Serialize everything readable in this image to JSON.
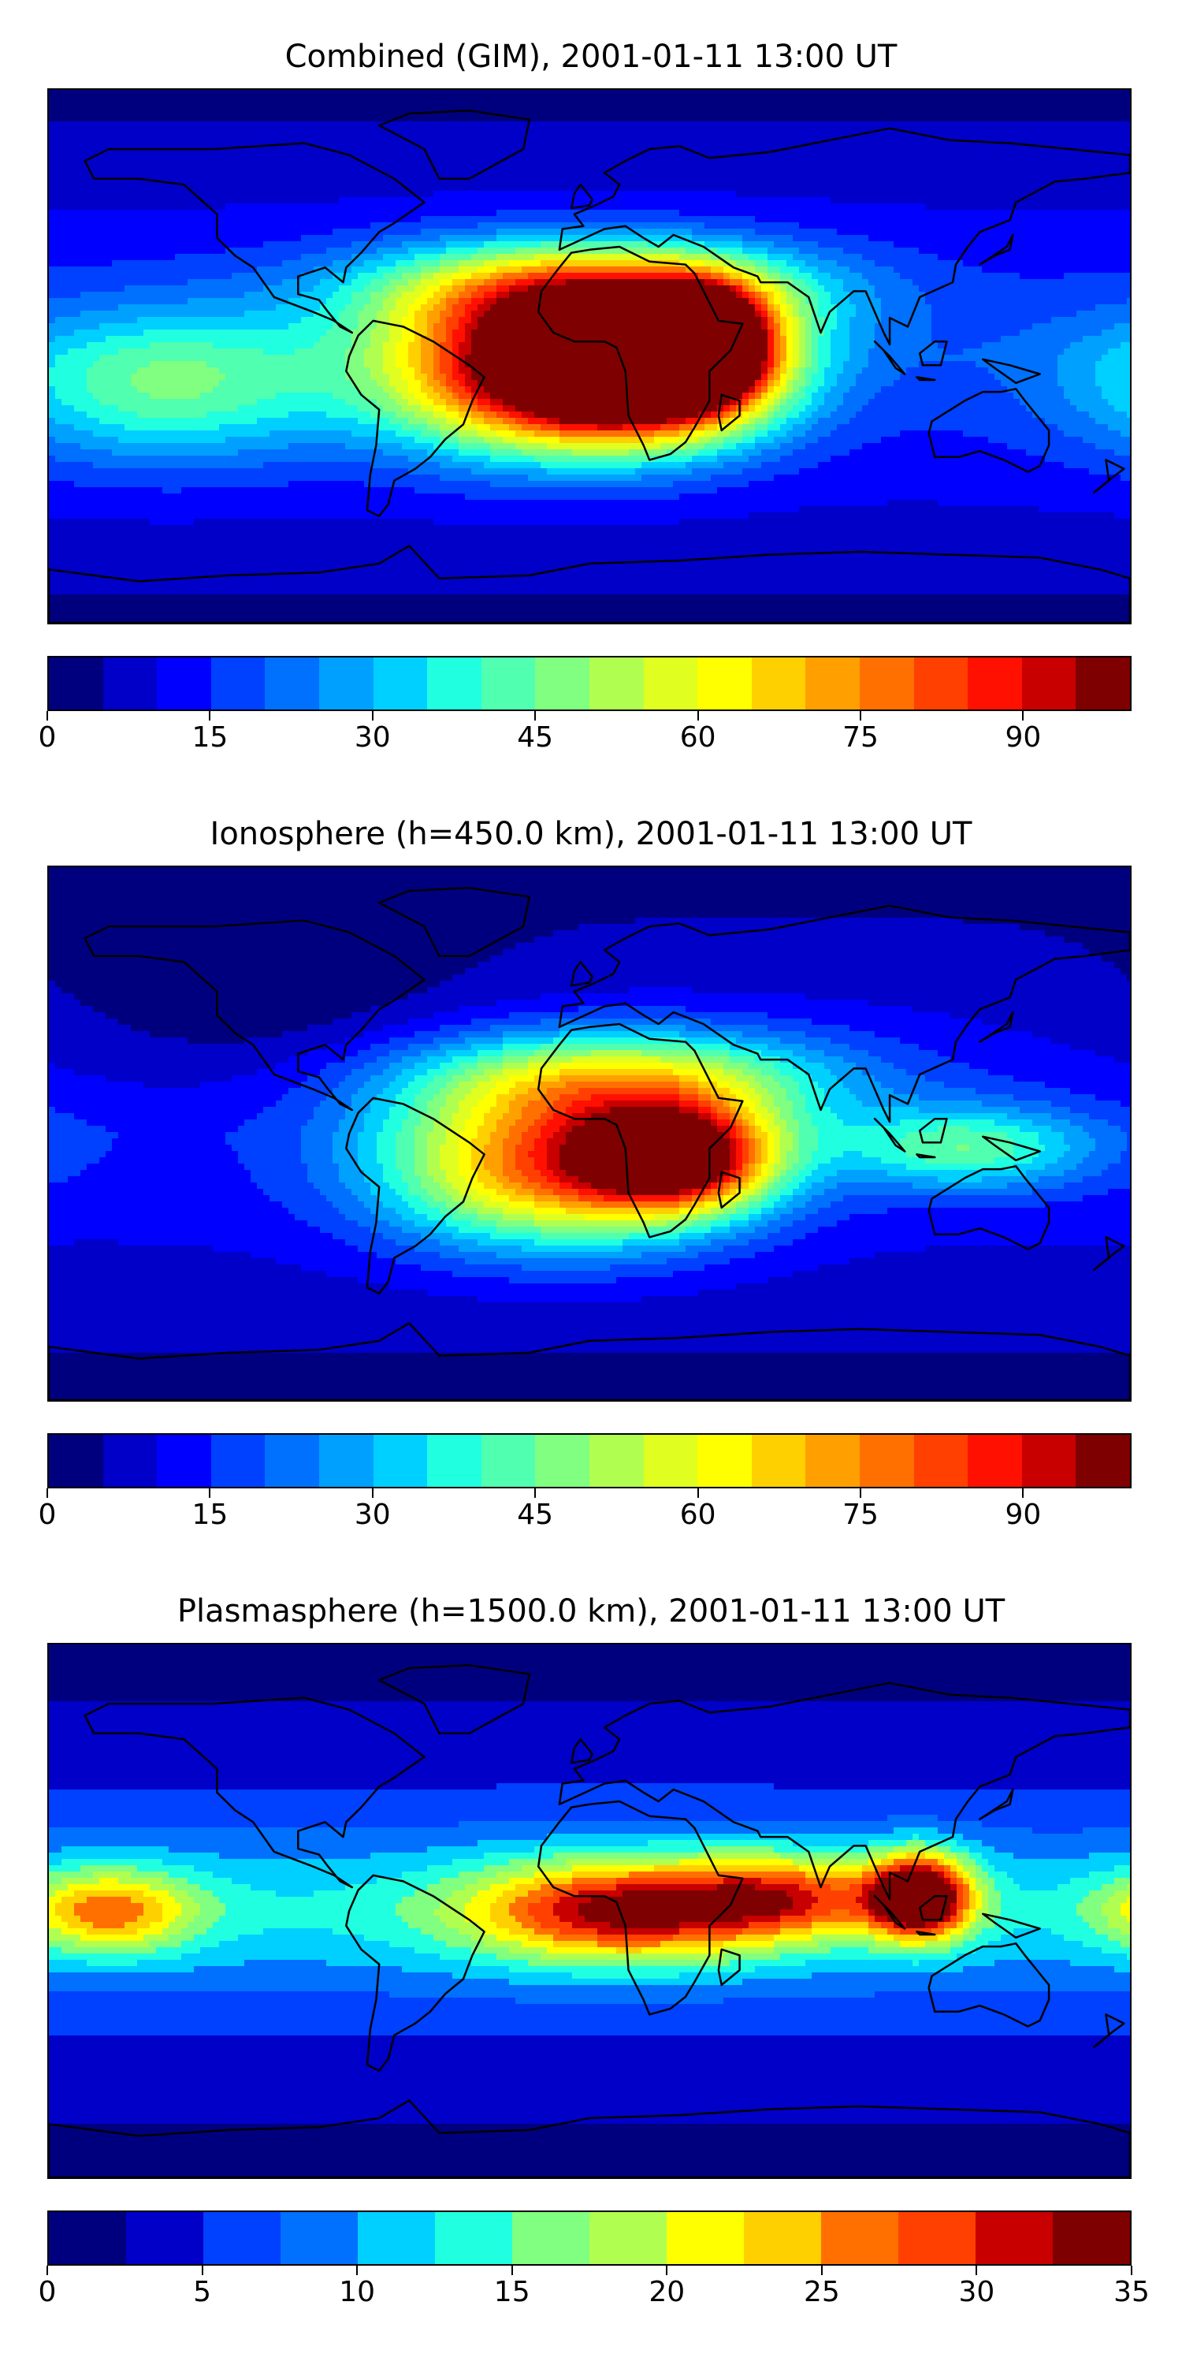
{
  "chart_data": [
    {
      "type": "heatmap",
      "id": "gim",
      "title": "Combined (GIM), 2001-01-11 13:00 UT",
      "colorbar": {
        "min": 0,
        "max": 100,
        "step": 5,
        "ticks": [
          0,
          15,
          30,
          45,
          60,
          75,
          90
        ],
        "tick_labels": [
          "0",
          "15",
          "30",
          "45",
          "60",
          "75",
          "90"
        ]
      },
      "background_level": 18,
      "features": [
        {
          "name": "africa-maximum",
          "lon": 20,
          "lat": -5,
          "peak": 97,
          "spread_lon": 30,
          "spread_lat": 16
        },
        {
          "name": "indian-ocean-crest",
          "lon": 38,
          "lat": 5,
          "peak": 86,
          "spread_lon": 14,
          "spread_lat": 12
        },
        {
          "name": "south-atlantic-crest",
          "lon": -20,
          "lat": -6,
          "peak": 70,
          "spread_lon": 36,
          "spread_lat": 18
        },
        {
          "name": "sahara-crest",
          "lon": 0,
          "lat": 22,
          "peak": 58,
          "spread_lon": 50,
          "spread_lat": 12
        },
        {
          "name": "east-pacific-band",
          "lon": -140,
          "lat": -10,
          "peak": 30,
          "spread_lon": 40,
          "spread_lat": 18
        }
      ]
    },
    {
      "type": "heatmap",
      "id": "ionosphere",
      "title": "Ionosphere  (h=450.0 km), 2001-01-11 13:00 UT",
      "colorbar": {
        "min": 0,
        "max": 100,
        "step": 5,
        "ticks": [
          0,
          15,
          30,
          45,
          60,
          75,
          90
        ],
        "tick_labels": [
          "0",
          "15",
          "30",
          "45",
          "60",
          "75",
          "90"
        ]
      },
      "background_level": 15,
      "features": [
        {
          "name": "mozambique-maximum",
          "lon": 30,
          "lat": -8,
          "peak": 75,
          "spread_lon": 22,
          "spread_lat": 12
        },
        {
          "name": "south-atlantic-crest",
          "lon": -10,
          "lat": -12,
          "peak": 65,
          "spread_lon": 40,
          "spread_lat": 18
        },
        {
          "name": "north-africa-crest",
          "lon": 10,
          "lat": 18,
          "peak": 45,
          "spread_lon": 50,
          "spread_lat": 12
        },
        {
          "name": "indonesia-band",
          "lon": 125,
          "lat": -5,
          "peak": 30,
          "spread_lon": 30,
          "spread_lat": 10
        },
        {
          "name": "north-america-trough",
          "lon": -110,
          "lat": 45,
          "peak": -8,
          "spread_lon": 50,
          "spread_lat": 25
        }
      ]
    },
    {
      "type": "heatmap",
      "id": "plasmasphere",
      "title": "Plasmasphere (h=1500.0 km), 2001-01-11 13:00 UT",
      "colorbar": {
        "min": 0,
        "max": 35,
        "step": 2.5,
        "ticks": [
          0,
          5,
          10,
          15,
          20,
          25,
          30,
          35
        ],
        "tick_labels": [
          "0",
          "5",
          "10",
          "15",
          "20",
          "25",
          "30",
          "35"
        ]
      },
      "background_level": 7,
      "features": [
        {
          "name": "southeast-asia-maximum",
          "lon": 110,
          "lat": 5,
          "peak": 30,
          "spread_lon": 12,
          "spread_lat": 10
        },
        {
          "name": "africa-crest",
          "lon": 10,
          "lat": 0,
          "peak": 21,
          "spread_lon": 35,
          "spread_lat": 12
        },
        {
          "name": "east-pacific-crest",
          "lon": -160,
          "lat": 0,
          "peak": 15,
          "spread_lon": 20,
          "spread_lat": 10
        },
        {
          "name": "indian-ocean-crest",
          "lon": 65,
          "lat": 5,
          "peak": 15,
          "spread_lon": 25,
          "spread_lat": 10
        },
        {
          "name": "low-latitude-belt",
          "lon": 0,
          "lat": 0,
          "peak": 6,
          "spread_lon": 360,
          "spread_lat": 20
        }
      ]
    }
  ],
  "colormap": [
    "#00007f",
    "#0000c8",
    "#0000ff",
    "#0040ff",
    "#0070ff",
    "#00a0ff",
    "#00d0ff",
    "#20ffe0",
    "#50ffb0",
    "#80ff80",
    "#b0ff50",
    "#e0ff20",
    "#ffff00",
    "#ffd000",
    "#ffa000",
    "#ff7000",
    "#ff4000",
    "#ff1000",
    "#c80000",
    "#7f0000"
  ]
}
